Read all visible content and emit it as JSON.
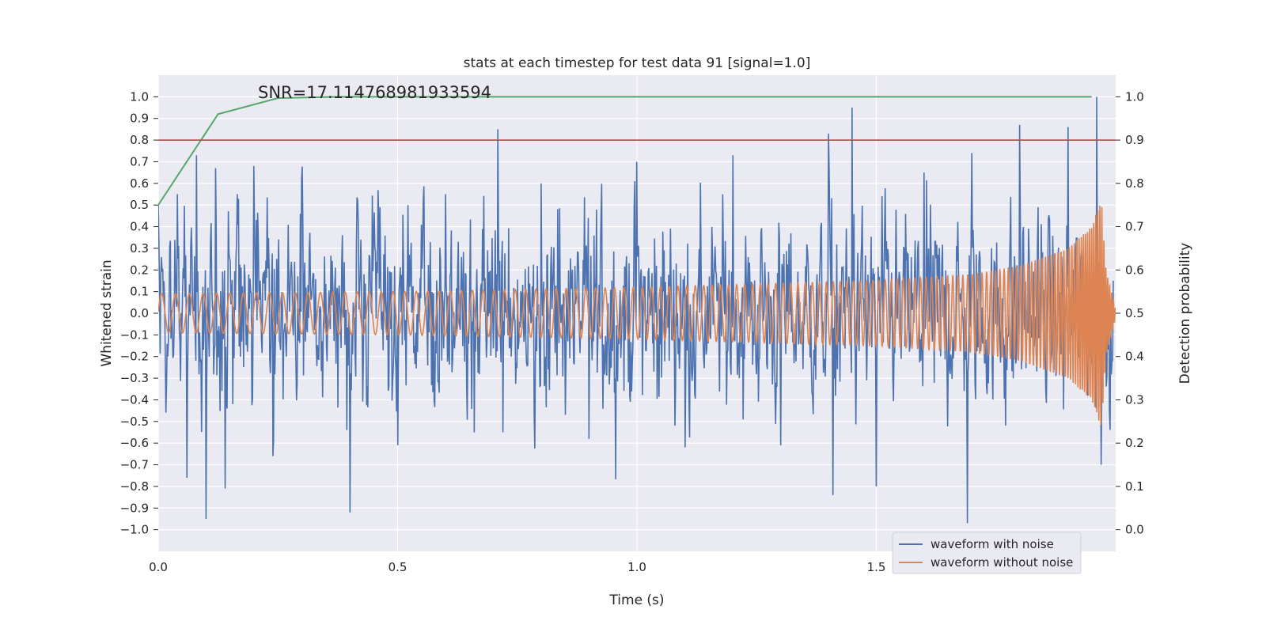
{
  "chart_data": {
    "type": "line",
    "title": "stats at each timestep for test data 91 [signal=1.0]",
    "xlabel": "Time (s)",
    "ylabel_left": "Whitened strain",
    "ylabel_right": "Detection probability",
    "annotation": "SNR=17.114768981933594",
    "xlim": [
      0.0,
      2.0
    ],
    "ylim_left": [
      -1.1,
      1.1
    ],
    "ylim_right": [
      -0.05,
      1.05
    ],
    "x_ticks": [
      "0.0",
      "0.5",
      "1.0",
      "1.5"
    ],
    "x_tick_values": [
      0.0,
      0.5,
      1.0,
      1.5
    ],
    "y_left_ticks": [
      "−1.0",
      "−0.9",
      "−0.8",
      "−0.7",
      "−0.6",
      "−0.5",
      "−0.4",
      "−0.3",
      "−0.2",
      "−0.1",
      "0.0",
      "0.1",
      "0.2",
      "0.3",
      "0.4",
      "0.5",
      "0.6",
      "0.7",
      "0.8",
      "0.9",
      "1.0"
    ],
    "y_left_tick_values": [
      -1.0,
      -0.9,
      -0.8,
      -0.7,
      -0.6,
      -0.5,
      -0.4,
      -0.3,
      -0.2,
      -0.1,
      0.0,
      0.1,
      0.2,
      0.3,
      0.4,
      0.5,
      0.6,
      0.7,
      0.8,
      0.9,
      1.0
    ],
    "y_right_ticks": [
      "0.0",
      "0.1",
      "0.2",
      "0.3",
      "0.4",
      "0.5",
      "0.6",
      "0.7",
      "0.8",
      "0.9",
      "1.0"
    ],
    "y_right_tick_values": [
      0.0,
      0.1,
      0.2,
      0.3,
      0.4,
      0.5,
      0.6,
      0.7,
      0.8,
      0.9,
      1.0
    ],
    "grid": true,
    "legend_position": "lower-right",
    "series": [
      {
        "name": "waveform with noise",
        "color": "#4c72b0",
        "axis": "left",
        "description_samples": "noisy strain, roughly within -0.95..1.0",
        "samples_x": [
          0.0,
          0.02,
          0.04,
          0.06,
          0.08,
          0.1,
          0.12,
          0.14,
          0.2,
          0.24,
          0.3,
          0.4,
          0.46,
          0.5,
          0.6,
          0.66,
          0.71,
          0.72,
          0.8,
          0.9,
          1.0,
          1.1,
          1.2,
          1.3,
          1.4,
          1.41,
          1.45,
          1.5,
          1.6,
          1.69,
          1.7,
          1.8,
          1.9,
          1.96,
          1.97,
          2.0
        ],
        "samples_y": [
          0.5,
          -0.2,
          0.55,
          -0.76,
          0.73,
          -0.95,
          0.67,
          -0.81,
          0.68,
          -0.66,
          0.62,
          -0.92,
          0.45,
          -0.61,
          0.55,
          -0.55,
          0.85,
          -0.55,
          0.6,
          -0.58,
          0.7,
          -0.62,
          0.73,
          -0.61,
          0.83,
          -0.84,
          0.95,
          -0.8,
          0.65,
          -0.97,
          0.74,
          0.87,
          0.86,
          1.0,
          -0.7,
          -0.47
        ]
      },
      {
        "name": "waveform without noise",
        "color": "#dd8452",
        "axis": "left",
        "description_samples": "chirp signal, amplitude ~0.09 rising to ~0.53 near merger at ~1.97 s then ringdown",
        "envelope_x": [
          0.0,
          0.5,
          1.0,
          1.5,
          1.7,
          1.8,
          1.9,
          1.95,
          1.97,
          1.98,
          2.0
        ],
        "envelope_y": [
          0.09,
          0.1,
          0.12,
          0.15,
          0.18,
          0.22,
          0.3,
          0.4,
          0.53,
          0.2,
          0.02
        ]
      },
      {
        "name": "",
        "color": "#55a868",
        "axis": "right",
        "x": [
          0.0,
          0.125,
          0.25,
          0.375,
          0.5,
          0.625,
          0.75,
          0.875,
          1.0,
          1.125,
          1.25,
          1.375,
          1.5,
          1.625,
          1.75,
          1.875,
          1.95
        ],
        "y": [
          0.75,
          0.96,
          0.997,
          1.0,
          1.0,
          1.0,
          1.0,
          1.0,
          1.0,
          1.0,
          1.0,
          1.0,
          1.0,
          1.0,
          1.0,
          1.0,
          1.0
        ]
      }
    ],
    "threshold": {
      "color": "#c44e52",
      "axis": "right",
      "value": 0.9
    },
    "colors": {
      "plot_background": "#eaeaf2",
      "grid": "#ffffff"
    }
  }
}
